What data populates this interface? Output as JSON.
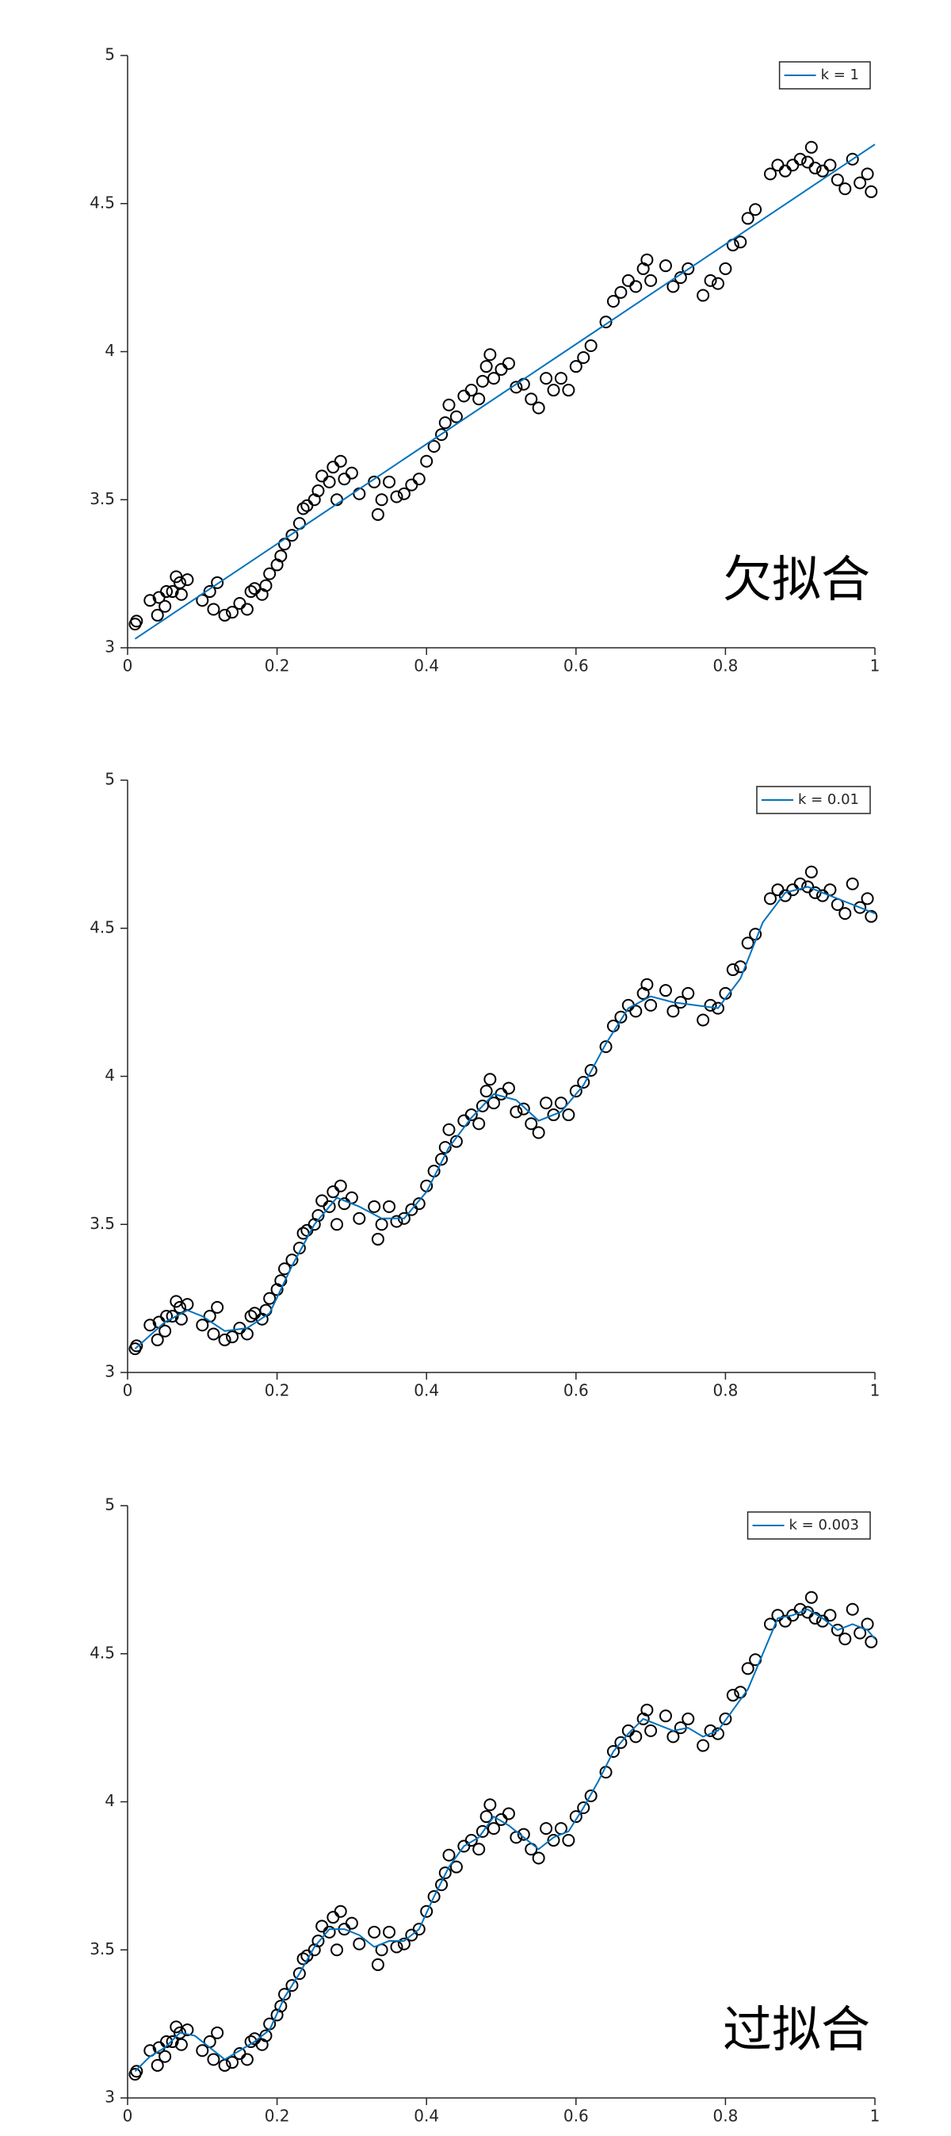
{
  "chart_data": [
    {
      "type": "scatter",
      "annotation": "欠拟合",
      "legend": "northeast",
      "xlim": [
        0,
        1
      ],
      "ylim": [
        3,
        5
      ],
      "xticks": [
        0,
        0.2,
        0.4,
        0.6,
        0.8,
        1
      ],
      "yticks": [
        3,
        {
          "value": 3.5,
          "label": "3.5"
        },
        4,
        {
          "value": 4.5,
          "label": "4.5"
        },
        5
      ],
      "series": [
        {
          "color": "#000000",
          "marker": "o",
          "x": [
            0.01,
            0.012,
            0.03,
            0.04,
            0.042,
            0.05,
            0.052,
            0.06,
            0.065,
            0.07,
            0.072,
            0.08,
            0.1,
            0.11,
            0.115,
            0.12,
            0.13,
            0.14,
            0.15,
            0.16,
            0.165,
            0.17,
            0.18,
            0.185,
            0.19,
            0.2,
            0.205,
            0.21,
            0.22,
            0.23,
            0.235,
            0.24,
            0.25,
            0.255,
            0.26,
            0.27,
            0.275,
            0.28,
            0.285,
            0.29,
            0.3,
            0.31,
            0.33,
            0.335,
            0.34,
            0.35,
            0.36,
            0.37,
            0.38,
            0.39,
            0.4,
            0.41,
            0.42,
            0.425,
            0.43,
            0.44,
            0.45,
            0.46,
            0.47,
            0.475,
            0.48,
            0.485,
            0.49,
            0.5,
            0.51,
            0.52,
            0.53,
            0.54,
            0.55,
            0.56,
            0.57,
            0.58,
            0.59,
            0.6,
            0.61,
            0.62,
            0.64,
            0.65,
            0.66,
            0.67,
            0.68,
            0.69,
            0.695,
            0.7,
            0.72,
            0.73,
            0.74,
            0.75,
            0.77,
            0.78,
            0.79,
            0.8,
            0.81,
            0.82,
            0.83,
            0.84,
            0.86,
            0.87,
            0.88,
            0.89,
            0.9,
            0.91,
            0.915,
            0.92,
            0.93,
            0.94,
            0.95,
            0.96,
            0.97,
            0.98,
            0.99,
            0.995
          ],
          "values": [
            3.08,
            3.09,
            3.16,
            3.11,
            3.17,
            3.14,
            3.19,
            3.19,
            3.24,
            3.22,
            3.18,
            3.23,
            3.16,
            3.19,
            3.13,
            3.22,
            3.11,
            3.12,
            3.15,
            3.13,
            3.19,
            3.2,
            3.18,
            3.21,
            3.25,
            3.28,
            3.31,
            3.35,
            3.38,
            3.42,
            3.47,
            3.48,
            3.5,
            3.53,
            3.58,
            3.56,
            3.61,
            3.5,
            3.63,
            3.57,
            3.59,
            3.52,
            3.56,
            3.45,
            3.5,
            3.56,
            3.51,
            3.52,
            3.55,
            3.57,
            3.63,
            3.68,
            3.72,
            3.76,
            3.82,
            3.78,
            3.85,
            3.87,
            3.84,
            3.9,
            3.95,
            3.99,
            3.91,
            3.94,
            3.96,
            3.88,
            3.89,
            3.84,
            3.81,
            3.91,
            3.87,
            3.91,
            3.87,
            3.95,
            3.98,
            4.02,
            4.1,
            4.17,
            4.2,
            4.24,
            4.22,
            4.28,
            4.31,
            4.24,
            4.29,
            4.22,
            4.25,
            4.28,
            4.19,
            4.24,
            4.23,
            4.28,
            4.36,
            4.37,
            4.45,
            4.48,
            4.6,
            4.63,
            4.61,
            4.63,
            4.65,
            4.64,
            4.69,
            4.62,
            4.61,
            4.63,
            4.58,
            4.55,
            4.65,
            4.57,
            4.6,
            4.54
          ]
        },
        {
          "name": "k = 1",
          "color": "#0072bd",
          "x": [
            0.01,
            1
          ],
          "values": [
            3.03,
            4.7
          ]
        }
      ]
    },
    {
      "type": "scatter",
      "legend": "northeast",
      "xlim": [
        0,
        1
      ],
      "ylim": [
        3,
        5
      ],
      "xticks": [
        0,
        0.2,
        0.4,
        0.6,
        0.8,
        1
      ],
      "yticks": [
        3,
        {
          "value": 3.5,
          "label": "3.5"
        },
        4,
        {
          "value": 4.5,
          "label": "4.5"
        },
        5
      ],
      "series": [
        {
          "color": "#000000",
          "marker": "o",
          "x": [
            0.01,
            0.012,
            0.03,
            0.04,
            0.042,
            0.05,
            0.052,
            0.06,
            0.065,
            0.07,
            0.072,
            0.08,
            0.1,
            0.11,
            0.115,
            0.12,
            0.13,
            0.14,
            0.15,
            0.16,
            0.165,
            0.17,
            0.18,
            0.185,
            0.19,
            0.2,
            0.205,
            0.21,
            0.22,
            0.23,
            0.235,
            0.24,
            0.25,
            0.255,
            0.26,
            0.27,
            0.275,
            0.28,
            0.285,
            0.29,
            0.3,
            0.31,
            0.33,
            0.335,
            0.34,
            0.35,
            0.36,
            0.37,
            0.38,
            0.39,
            0.4,
            0.41,
            0.42,
            0.425,
            0.43,
            0.44,
            0.45,
            0.46,
            0.47,
            0.475,
            0.48,
            0.485,
            0.49,
            0.5,
            0.51,
            0.52,
            0.53,
            0.54,
            0.55,
            0.56,
            0.57,
            0.58,
            0.59,
            0.6,
            0.61,
            0.62,
            0.64,
            0.65,
            0.66,
            0.67,
            0.68,
            0.69,
            0.695,
            0.7,
            0.72,
            0.73,
            0.74,
            0.75,
            0.77,
            0.78,
            0.79,
            0.8,
            0.81,
            0.82,
            0.83,
            0.84,
            0.86,
            0.87,
            0.88,
            0.89,
            0.9,
            0.91,
            0.915,
            0.92,
            0.93,
            0.94,
            0.95,
            0.96,
            0.97,
            0.98,
            0.99,
            0.995
          ],
          "values": [
            3.08,
            3.09,
            3.16,
            3.11,
            3.17,
            3.14,
            3.19,
            3.19,
            3.24,
            3.22,
            3.18,
            3.23,
            3.16,
            3.19,
            3.13,
            3.22,
            3.11,
            3.12,
            3.15,
            3.13,
            3.19,
            3.2,
            3.18,
            3.21,
            3.25,
            3.28,
            3.31,
            3.35,
            3.38,
            3.42,
            3.47,
            3.48,
            3.5,
            3.53,
            3.58,
            3.56,
            3.61,
            3.5,
            3.63,
            3.57,
            3.59,
            3.52,
            3.56,
            3.45,
            3.5,
            3.56,
            3.51,
            3.52,
            3.55,
            3.57,
            3.63,
            3.68,
            3.72,
            3.76,
            3.82,
            3.78,
            3.85,
            3.87,
            3.84,
            3.9,
            3.95,
            3.99,
            3.91,
            3.94,
            3.96,
            3.88,
            3.89,
            3.84,
            3.81,
            3.91,
            3.87,
            3.91,
            3.87,
            3.95,
            3.98,
            4.02,
            4.1,
            4.17,
            4.2,
            4.24,
            4.22,
            4.28,
            4.31,
            4.24,
            4.29,
            4.22,
            4.25,
            4.28,
            4.19,
            4.24,
            4.23,
            4.28,
            4.36,
            4.37,
            4.45,
            4.48,
            4.6,
            4.63,
            4.61,
            4.63,
            4.65,
            4.64,
            4.69,
            4.62,
            4.61,
            4.63,
            4.58,
            4.55,
            4.65,
            4.57,
            4.6,
            4.54
          ]
        },
        {
          "name": "k = 0.01",
          "color": "#0072bd",
          "x": [
            0.01,
            0.05,
            0.08,
            0.1,
            0.13,
            0.16,
            0.19,
            0.22,
            0.25,
            0.28,
            0.31,
            0.34,
            0.37,
            0.4,
            0.43,
            0.46,
            0.49,
            0.52,
            0.55,
            0.58,
            0.61,
            0.64,
            0.67,
            0.7,
            0.73,
            0.76,
            0.79,
            0.82,
            0.85,
            0.88,
            0.91,
            0.94,
            0.97,
            1
          ],
          "values": [
            3.08,
            3.17,
            3.21,
            3.19,
            3.14,
            3.15,
            3.2,
            3.36,
            3.5,
            3.59,
            3.56,
            3.52,
            3.52,
            3.61,
            3.76,
            3.86,
            3.94,
            3.92,
            3.85,
            3.88,
            3.97,
            4.11,
            4.23,
            4.27,
            4.25,
            4.24,
            4.23,
            4.33,
            4.52,
            4.62,
            4.64,
            4.61,
            4.58,
            4.55
          ]
        }
      ]
    },
    {
      "type": "scatter",
      "annotation": "过拟合",
      "legend": "northeast",
      "xlim": [
        0,
        1
      ],
      "ylim": [
        3,
        5
      ],
      "xticks": [
        0,
        0.2,
        0.4,
        0.6,
        0.8,
        1
      ],
      "yticks": [
        3,
        {
          "value": 3.5,
          "label": "3.5"
        },
        4,
        {
          "value": 4.5,
          "label": "4.5"
        },
        5
      ],
      "series": [
        {
          "color": "#000000",
          "marker": "o",
          "x": [
            0.01,
            0.012,
            0.03,
            0.04,
            0.042,
            0.05,
            0.052,
            0.06,
            0.065,
            0.07,
            0.072,
            0.08,
            0.1,
            0.11,
            0.115,
            0.12,
            0.13,
            0.14,
            0.15,
            0.16,
            0.165,
            0.17,
            0.18,
            0.185,
            0.19,
            0.2,
            0.205,
            0.21,
            0.22,
            0.23,
            0.235,
            0.24,
            0.25,
            0.255,
            0.26,
            0.27,
            0.275,
            0.28,
            0.285,
            0.29,
            0.3,
            0.31,
            0.33,
            0.335,
            0.34,
            0.35,
            0.36,
            0.37,
            0.38,
            0.39,
            0.4,
            0.41,
            0.42,
            0.425,
            0.43,
            0.44,
            0.45,
            0.46,
            0.47,
            0.475,
            0.48,
            0.485,
            0.49,
            0.5,
            0.51,
            0.52,
            0.53,
            0.54,
            0.55,
            0.56,
            0.57,
            0.58,
            0.59,
            0.6,
            0.61,
            0.62,
            0.64,
            0.65,
            0.66,
            0.67,
            0.68,
            0.69,
            0.695,
            0.7,
            0.72,
            0.73,
            0.74,
            0.75,
            0.77,
            0.78,
            0.79,
            0.8,
            0.81,
            0.82,
            0.83,
            0.84,
            0.86,
            0.87,
            0.88,
            0.89,
            0.9,
            0.91,
            0.915,
            0.92,
            0.93,
            0.94,
            0.95,
            0.96,
            0.97,
            0.98,
            0.99,
            0.995
          ],
          "values": [
            3.08,
            3.09,
            3.16,
            3.11,
            3.17,
            3.14,
            3.19,
            3.19,
            3.24,
            3.22,
            3.18,
            3.23,
            3.16,
            3.19,
            3.13,
            3.22,
            3.11,
            3.12,
            3.15,
            3.13,
            3.19,
            3.2,
            3.18,
            3.21,
            3.25,
            3.28,
            3.31,
            3.35,
            3.38,
            3.42,
            3.47,
            3.48,
            3.5,
            3.53,
            3.58,
            3.56,
            3.61,
            3.5,
            3.63,
            3.57,
            3.59,
            3.52,
            3.56,
            3.45,
            3.5,
            3.56,
            3.51,
            3.52,
            3.55,
            3.57,
            3.63,
            3.68,
            3.72,
            3.76,
            3.82,
            3.78,
            3.85,
            3.87,
            3.84,
            3.9,
            3.95,
            3.99,
            3.91,
            3.94,
            3.96,
            3.88,
            3.89,
            3.84,
            3.81,
            3.91,
            3.87,
            3.91,
            3.87,
            3.95,
            3.98,
            4.02,
            4.1,
            4.17,
            4.2,
            4.24,
            4.22,
            4.28,
            4.31,
            4.24,
            4.29,
            4.22,
            4.25,
            4.28,
            4.19,
            4.24,
            4.23,
            4.28,
            4.36,
            4.37,
            4.45,
            4.48,
            4.6,
            4.63,
            4.61,
            4.63,
            4.65,
            4.64,
            4.69,
            4.62,
            4.61,
            4.63,
            4.58,
            4.55,
            4.65,
            4.57,
            4.6,
            4.54
          ]
        },
        {
          "name": "k = 0.003",
          "color": "#0072bd",
          "x": [
            0.01,
            0.03,
            0.05,
            0.07,
            0.09,
            0.11,
            0.13,
            0.15,
            0.17,
            0.19,
            0.21,
            0.23,
            0.25,
            0.27,
            0.29,
            0.31,
            0.33,
            0.35,
            0.37,
            0.39,
            0.41,
            0.43,
            0.45,
            0.47,
            0.49,
            0.51,
            0.53,
            0.55,
            0.57,
            0.59,
            0.61,
            0.63,
            0.65,
            0.67,
            0.69,
            0.71,
            0.73,
            0.75,
            0.77,
            0.79,
            0.81,
            0.83,
            0.85,
            0.87,
            0.89,
            0.91,
            0.93,
            0.95,
            0.97,
            0.99,
            1
          ],
          "values": [
            3.09,
            3.14,
            3.17,
            3.22,
            3.21,
            3.17,
            3.13,
            3.16,
            3.19,
            3.23,
            3.34,
            3.42,
            3.51,
            3.57,
            3.57,
            3.55,
            3.51,
            3.53,
            3.53,
            3.57,
            3.68,
            3.78,
            3.85,
            3.88,
            3.95,
            3.92,
            3.88,
            3.84,
            3.88,
            3.9,
            3.98,
            4.07,
            4.17,
            4.23,
            4.28,
            4.26,
            4.24,
            4.25,
            4.22,
            4.24,
            4.31,
            4.38,
            4.5,
            4.62,
            4.63,
            4.65,
            4.62,
            4.58,
            4.6,
            4.58,
            4.55
          ]
        }
      ]
    }
  ]
}
